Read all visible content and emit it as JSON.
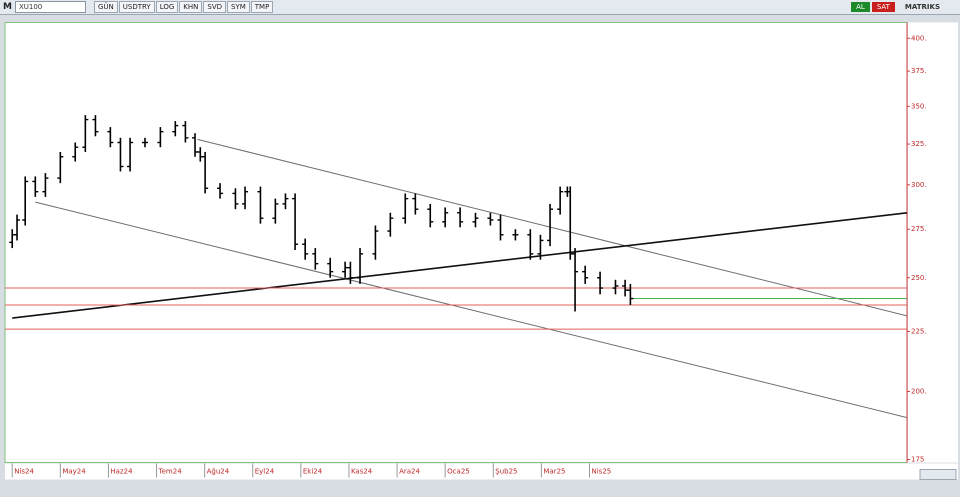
{
  "toolbar": {
    "brand": "M",
    "symbol": "XU100",
    "buttons": [
      "GÜN",
      "USDTRY",
      "LOG",
      "KHN",
      "SVD",
      "SYM",
      "TMP"
    ],
    "buy": "AL",
    "sell": "SAT",
    "vendor": "MATRIKS"
  },
  "chart_data": {
    "type": "ohlc",
    "log_scale": true,
    "x": [
      0,
      0.1,
      0.27,
      0.48,
      0.69,
      1.0,
      1.31,
      1.52,
      1.73,
      2.04,
      2.25,
      2.45,
      2.76,
      3.08,
      3.39,
      3.6,
      3.8,
      3.91,
      4.01,
      4.32,
      4.64,
      4.84,
      5.16,
      5.47,
      5.68,
      5.88,
      6.09,
      6.3,
      6.61,
      6.92,
      7.03,
      7.23,
      7.55,
      7.86,
      8.17,
      8.38,
      8.69,
      9.0,
      9.31,
      9.63,
      9.94,
      10.15,
      10.46,
      10.77,
      10.98,
      11.18,
      11.39,
      11.54,
      11.6,
      11.7,
      11.91,
      12.22,
      12.54,
      12.74,
      12.85
    ],
    "open": [
      268,
      272,
      280,
      302,
      296,
      304,
      317,
      323,
      341,
      333,
      326,
      311,
      326,
      326,
      333,
      337,
      329,
      320,
      317,
      298,
      295,
      289,
      296,
      281,
      289,
      292,
      267,
      262,
      257,
      253,
      255,
      250,
      262,
      274,
      281,
      292,
      286,
      279,
      284,
      279,
      281,
      280,
      272,
      272,
      262,
      269,
      286,
      296,
      296,
      262,
      253,
      250,
      245,
      246,
      244
    ],
    "high": [
      275,
      283,
      305,
      305,
      307,
      320,
      326,
      344,
      344,
      336,
      329,
      329,
      329,
      336,
      340,
      340,
      332,
      323,
      320,
      301,
      298,
      299,
      299,
      292,
      295,
      295,
      270,
      265,
      260,
      258,
      258,
      265,
      277,
      284,
      295,
      295,
      289,
      287,
      287,
      284,
      284,
      283,
      275,
      275,
      272,
      289,
      299,
      299,
      299,
      265,
      256,
      253,
      249,
      249,
      247
    ],
    "low": [
      265,
      269,
      277,
      293,
      293,
      301,
      314,
      320,
      330,
      323,
      308,
      308,
      323,
      323,
      330,
      326,
      317,
      314,
      295,
      292,
      286,
      286,
      278,
      278,
      286,
      264,
      259,
      254,
      250,
      250,
      247,
      247,
      259,
      271,
      278,
      283,
      276,
      276,
      276,
      276,
      277,
      269,
      269,
      259,
      259,
      266,
      283,
      293,
      259,
      234,
      247,
      242,
      242,
      241,
      237
    ],
    "close": [
      272,
      280,
      302,
      296,
      304,
      317,
      323,
      341,
      333,
      326,
      311,
      326,
      326,
      333,
      337,
      329,
      320,
      317,
      298,
      295,
      289,
      296,
      281,
      289,
      292,
      267,
      262,
      257,
      253,
      255,
      250,
      262,
      274,
      281,
      292,
      286,
      279,
      284,
      279,
      281,
      280,
      272,
      272,
      262,
      269,
      286,
      296,
      296,
      262,
      253,
      250,
      245,
      246,
      244,
      240
    ],
    "color": "#000000",
    "xlim": [
      -0.15,
      18.6
    ],
    "xticks": [
      {
        "value": 0,
        "label": "Nis24"
      },
      {
        "value": 1,
        "label": "May24"
      },
      {
        "value": 2,
        "label": "Haz24"
      },
      {
        "value": 3,
        "label": "Tem24"
      },
      {
        "value": 4,
        "label": "Ağu24"
      },
      {
        "value": 5,
        "label": "Eyl24"
      },
      {
        "value": 6,
        "label": "Eki24"
      },
      {
        "value": 7,
        "label": "Kas24"
      },
      {
        "value": 8,
        "label": "Ara24"
      },
      {
        "value": 9,
        "label": "Oca25"
      },
      {
        "value": 10,
        "label": "Şub25"
      },
      {
        "value": 11,
        "label": "Mar25"
      },
      {
        "value": 12,
        "label": "Nis25"
      }
    ],
    "ylim": [
      175,
      415
    ],
    "yticks": [
      {
        "value": 175,
        "label": "175"
      },
      {
        "value": 200,
        "label": "200."
      },
      {
        "value": 225,
        "label": "225."
      },
      {
        "value": 250,
        "label": "250."
      },
      {
        "value": 275,
        "label": "275."
      },
      {
        "value": 300,
        "label": "300."
      },
      {
        "value": 325,
        "label": "325."
      },
      {
        "value": 350,
        "label": "350."
      },
      {
        "value": 375,
        "label": "375."
      },
      {
        "value": 400,
        "label": "400."
      }
    ],
    "lines": [
      {
        "x": [
          3.85,
          18.6
        ],
        "y": [
          328,
          232
        ],
        "color": "#6e6e6e",
        "width": 1
      },
      {
        "x": [
          0.48,
          18.6
        ],
        "y": [
          290,
          190
        ],
        "color": "#6e6e6e",
        "width": 1
      },
      {
        "x": [
          0,
          18.6
        ],
        "y": [
          231,
          284
        ],
        "color": "#111111",
        "width": 1.6
      },
      {
        "x": [
          -0.15,
          18.6
        ],
        "y": [
          245,
          245
        ],
        "color": "#e0605a",
        "width": 1
      },
      {
        "x": [
          -0.15,
          18.6
        ],
        "y": [
          237,
          237
        ],
        "color": "#e0605a",
        "width": 1
      },
      {
        "x": [
          -0.15,
          18.6
        ],
        "y": [
          226,
          226
        ],
        "color": "#e0605a",
        "width": 1
      },
      {
        "x": [
          12.85,
          18.6
        ],
        "y": [
          240,
          240
        ],
        "color": "#4caf50",
        "width": 1
      }
    ]
  }
}
